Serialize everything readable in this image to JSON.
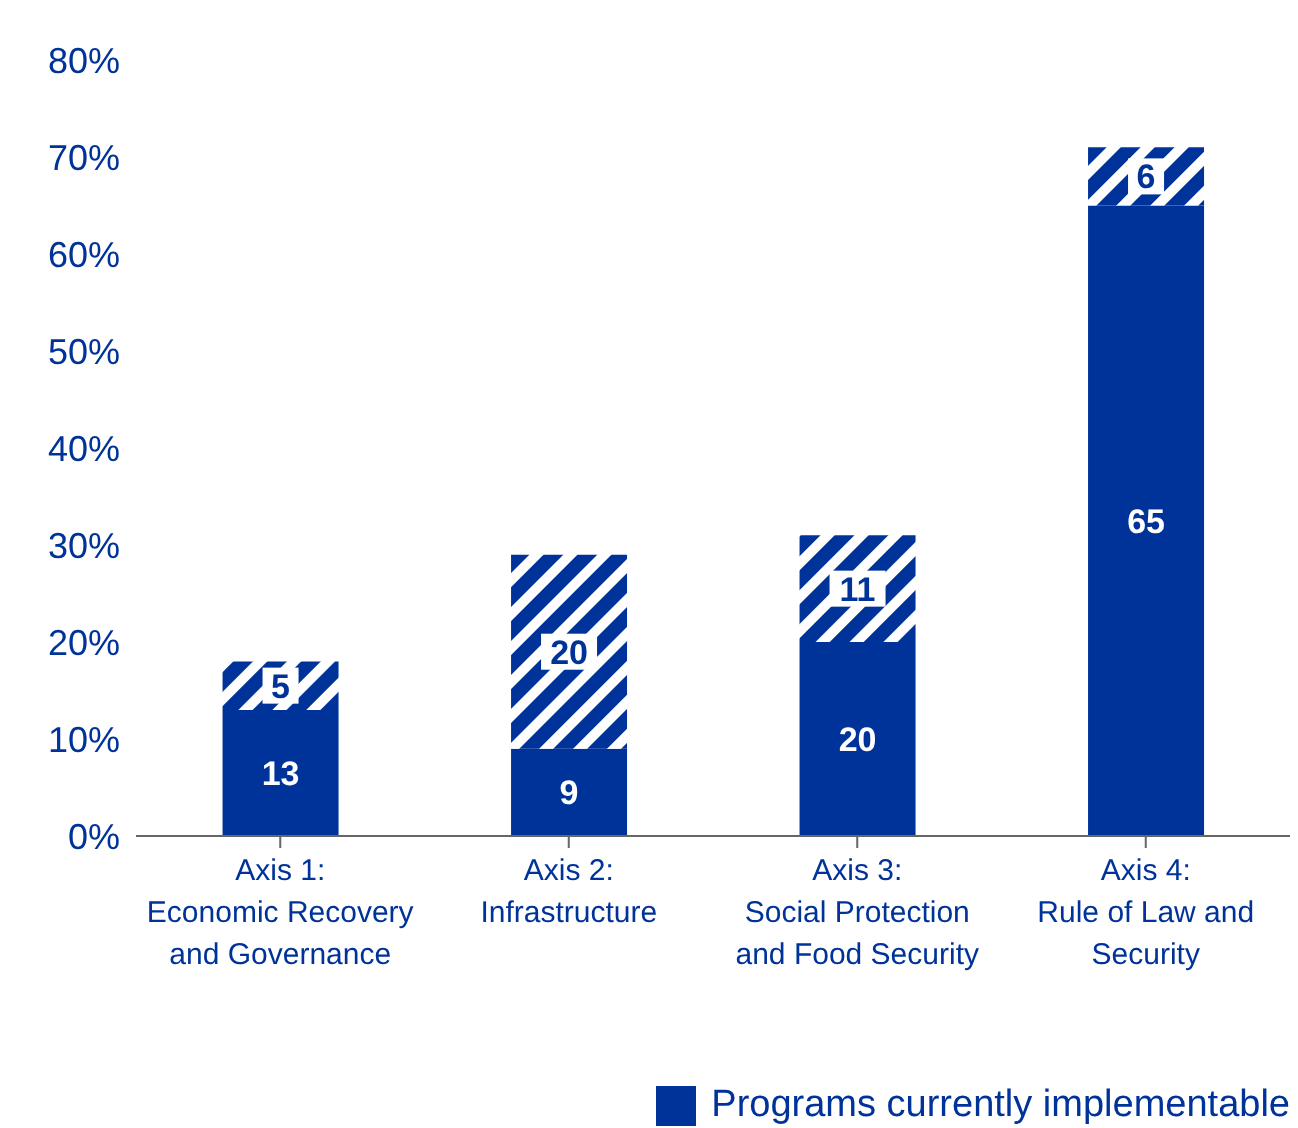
{
  "chart_data": {
    "type": "bar",
    "stacked": true,
    "categories": [
      "Axis 1: Economic Recovery and Governance",
      "Axis 2: Infrastructure",
      "Axis 3: Social Protection and Food Security",
      "Axis 4: Rule of Law and Security"
    ],
    "series": [
      {
        "name": "Programs currently implementable",
        "color": "#003399",
        "values": [
          13,
          9,
          20,
          65
        ]
      },
      {
        "color": "#003399",
        "values": [
          5,
          20,
          11,
          6
        ]
      }
    ],
    "ylim": [
      0,
      80
    ],
    "yticks": [
      {
        "value": 0,
        "label": "0%"
      },
      {
        "value": 10,
        "label": "10%"
      },
      {
        "value": 20,
        "label": "20%"
      },
      {
        "value": 30,
        "label": "30%"
      },
      {
        "value": 40,
        "label": "40%"
      },
      {
        "value": 50,
        "label": "50%"
      },
      {
        "value": 60,
        "label": "60%"
      },
      {
        "value": 70,
        "label": "70%"
      },
      {
        "value": 80,
        "label": "80%"
      }
    ],
    "data_labels": true,
    "grid": false,
    "legend": "bottom"
  }
}
